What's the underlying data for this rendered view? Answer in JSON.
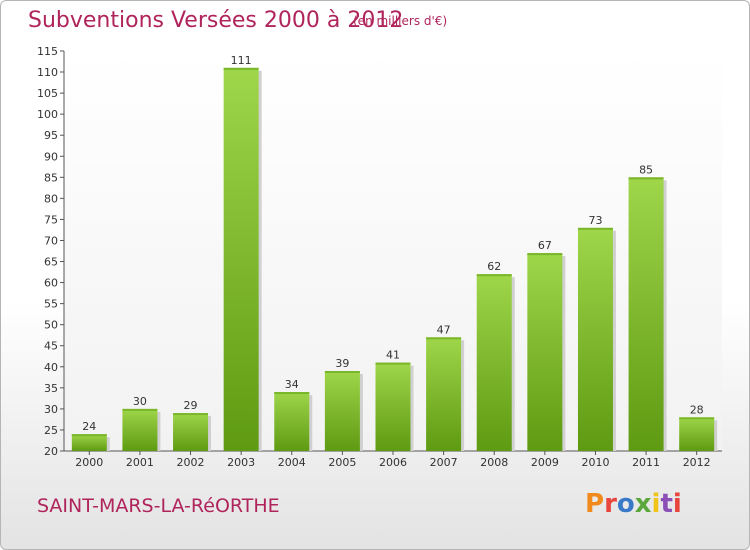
{
  "header": {
    "title": "Subventions Versées 2000 à 2012",
    "unit": "(en milliers d'€)"
  },
  "footer": {
    "commune": "SAINT-MARS-LA-RéORTHE",
    "logo_text": "Proxiti"
  },
  "colors": {
    "title": "#b0245c",
    "bar_light": "#9fd64a",
    "bar_dark": "#5e9a12",
    "logo": [
      "#f08a1c",
      "#e8453c",
      "#3a78c8",
      "#5aa83c",
      "#f0c419",
      "#8b4fb5",
      "#e8453c"
    ]
  },
  "chart_data": {
    "type": "bar",
    "categories": [
      "2000",
      "2001",
      "2002",
      "2003",
      "2004",
      "2005",
      "2006",
      "2007",
      "2008",
      "2009",
      "2010",
      "2011",
      "2012"
    ],
    "values": [
      24,
      30,
      29,
      111,
      34,
      39,
      41,
      47,
      62,
      67,
      73,
      85,
      28
    ],
    "ylim": [
      20,
      115
    ],
    "yticks": [
      20,
      25,
      30,
      35,
      40,
      45,
      50,
      55,
      60,
      65,
      70,
      75,
      80,
      85,
      90,
      95,
      100,
      105,
      110,
      115
    ],
    "grid": false,
    "xlabel": "",
    "ylabel": ""
  }
}
